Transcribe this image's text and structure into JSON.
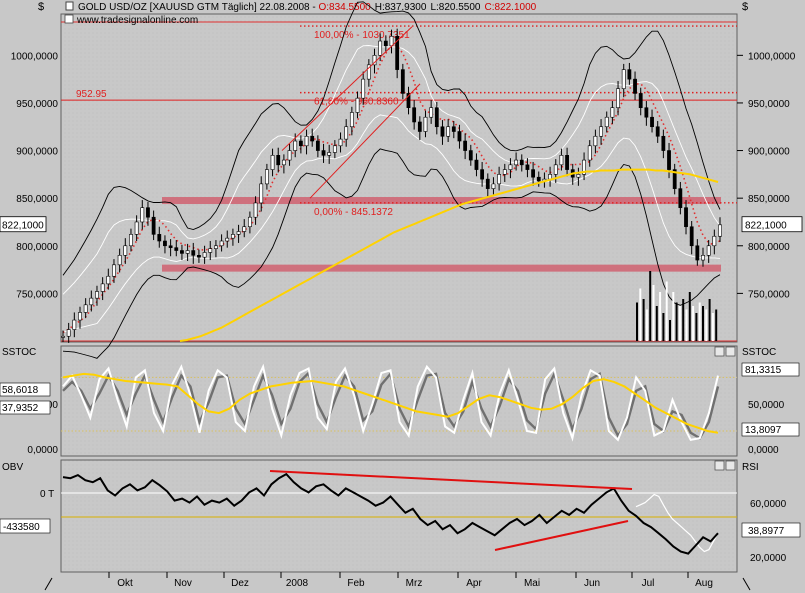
{
  "header": {
    "currency_left": "$",
    "currency_right": "$",
    "title_prefix": "GOLD USD/OZ [XAUUSD GTM  Täglich] 22.08.2008 - ",
    "open": "O:834.5500",
    "high": "H:837.9300",
    "low": "L:820.5500",
    "close": "C:822.1000",
    "source": "www.tradesignalonline.com"
  },
  "colors": {
    "background": "#c8c8c8",
    "price": "#000000",
    "ma_yellow": "#ffd200",
    "bollinger": "#000000",
    "ma_dotted": "#e03030",
    "support_band": "#d06070",
    "fib_lines": "#e02020",
    "stoch_fast": "#ffffff",
    "stoch_slow": "#707070",
    "stoch_signal": "#ffd200"
  },
  "chart_data": [
    {
      "type": "line",
      "panel": "price",
      "y_axis_ticks": [
        "1000,0000",
        "950,0000",
        "900,0000",
        "850,0000",
        "800,0000",
        "750,0000"
      ],
      "ylim": [
        700,
        1035
      ],
      "x_tick_labels": [
        "Okt",
        "Nov",
        "Dez",
        "2008",
        "Feb",
        "Mrz",
        "Apr",
        "Mai",
        "Jun",
        "Jul",
        "Aug"
      ],
      "last_value_label": "822,1000",
      "horizontal_level_label": "952.95",
      "fibonacci": [
        {
          "label": "100,00% - 1030.7351",
          "value": 1030.74
        },
        {
          "label": "61,80% - 960.8360",
          "value": 960.84
        },
        {
          "label": "0,00% - 845.1372",
          "value": 845.14
        }
      ],
      "support_bands": [
        847,
        776
      ],
      "series": [
        {
          "values": [
            705,
            712,
            722,
            730,
            738,
            745,
            752,
            760,
            768,
            780,
            790,
            800,
            812,
            825,
            840,
            830,
            812,
            805,
            800,
            798,
            795,
            792,
            795,
            790,
            788,
            793,
            797,
            800,
            805,
            808,
            812,
            815,
            820,
            830,
            845,
            865,
            880,
            895,
            885,
            890,
            900,
            910,
            905,
            915,
            910,
            900,
            895,
            898,
            905,
            912,
            925,
            940,
            955,
            975,
            990,
            1000,
            1015,
            1010,
            1020,
            985,
            960,
            945,
            930,
            920,
            935,
            945,
            925,
            915,
            925,
            920,
            910,
            900,
            890,
            880,
            870,
            860,
            865,
            875,
            880,
            885,
            890,
            885,
            880,
            872,
            868,
            870,
            875,
            885,
            895,
            880,
            872,
            875,
            890,
            905,
            915,
            925,
            935,
            945,
            965,
            985,
            975,
            960,
            945,
            935,
            925,
            915,
            900,
            880,
            860,
            840,
            820,
            800,
            785,
            790,
            800,
            810,
            822
          ]
        },
        {
          "values": [
            700,
            701,
            703,
            705,
            708,
            711,
            714,
            718,
            722,
            726,
            730,
            734,
            738,
            742,
            746,
            750,
            754,
            758,
            762,
            766,
            770,
            774,
            778,
            782,
            786,
            790,
            794,
            798,
            802,
            806,
            810,
            814,
            817,
            820,
            823,
            826,
            829,
            832,
            835,
            838,
            841,
            844,
            846,
            848,
            850,
            852,
            854,
            856,
            858,
            860,
            862,
            864,
            866,
            868,
            870,
            872,
            874,
            876,
            877,
            878,
            878,
            879,
            879,
            879,
            880,
            880,
            880,
            880,
            880,
            879,
            879,
            878,
            877,
            876,
            875,
            873,
            871,
            869,
            867
          ]
        }
      ]
    },
    {
      "type": "line",
      "panel": "SSTOC",
      "title": "SSTOC",
      "y_axis_ticks": [
        "50,0000",
        "0,0000"
      ],
      "ylim": [
        -8,
        104
      ],
      "value_labels": [
        "58,6018",
        "37,9352",
        "81,3315",
        "13,8097"
      ],
      "levels": [
        80,
        20
      ],
      "series": [
        {
          "values": [
            70,
            82,
            60,
            35,
            78,
            90,
            55,
            25,
            80,
            88,
            40,
            20,
            72,
            92,
            60,
            18,
            65,
            88,
            80,
            30,
            20,
            70,
            92,
            45,
            15,
            60,
            85,
            90,
            35,
            22,
            75,
            90,
            60,
            20,
            50,
            85,
            88,
            30,
            15,
            70,
            92,
            80,
            25,
            18,
            55,
            85,
            30,
            15,
            62,
            88,
            55,
            20,
            18,
            78,
            90,
            40,
            12,
            60,
            88,
            82,
            20,
            10,
            35,
            80,
            65,
            15,
            20,
            55,
            30,
            10,
            12,
            40,
            82
          ]
        },
        {
          "values": [
            65,
            75,
            65,
            45,
            62,
            82,
            65,
            38,
            62,
            82,
            55,
            30,
            58,
            82,
            70,
            30,
            52,
            80,
            82,
            45,
            28,
            55,
            82,
            60,
            28,
            45,
            75,
            85,
            50,
            30,
            58,
            82,
            70,
            32,
            42,
            72,
            84,
            45,
            25,
            55,
            82,
            84,
            40,
            25,
            42,
            75,
            45,
            25,
            48,
            78,
            65,
            32,
            22,
            62,
            84,
            55,
            22,
            45,
            78,
            84,
            35,
            15,
            28,
            65,
            70,
            28,
            20,
            42,
            38,
            18,
            12,
            30,
            70
          ]
        },
        {
          "values": [
            80,
            82,
            84,
            83,
            80,
            78,
            76,
            75,
            74,
            73,
            72,
            70,
            60,
            50,
            42,
            40,
            45,
            55,
            62,
            66,
            70,
            72,
            74,
            75,
            76,
            74,
            72,
            70,
            66,
            62,
            58,
            54,
            50,
            46,
            42,
            40,
            38,
            36,
            40,
            48,
            56,
            60,
            58,
            54,
            50,
            46,
            44,
            45,
            50,
            58,
            68,
            76,
            78,
            75,
            70,
            62,
            54,
            46,
            40,
            34,
            28,
            24,
            20,
            18
          ]
        }
      ]
    },
    {
      "type": "line",
      "panel": "OBV / RSI",
      "title_left": "OBV",
      "title_right": "RSI",
      "y_axis_ticks_left": [
        "0 T"
      ],
      "value_label_left": "-433580",
      "y_axis_ticks_right": [
        "60,0000",
        "20,0000"
      ],
      "value_label_right": "38,8977",
      "ylim": [
        0,
        100
      ],
      "series": [
        {
          "values": [
            93,
            92,
            95,
            90,
            88,
            92,
            80,
            75,
            82,
            86,
            80,
            83,
            90,
            85,
            79,
            70,
            72,
            68,
            74,
            66,
            70,
            68,
            72,
            65,
            70,
            78,
            82,
            75,
            86,
            92,
            96,
            88,
            82,
            78,
            84,
            86,
            80,
            75,
            82,
            78,
            74,
            70,
            65,
            68,
            74,
            66,
            58,
            62,
            52,
            46,
            50,
            42,
            46,
            38,
            42,
            48,
            44,
            40,
            36,
            42,
            48,
            52,
            46,
            50,
            56,
            48,
            54,
            60,
            56,
            62,
            58,
            66,
            72,
            78,
            82,
            70,
            60,
            55,
            48,
            44,
            38,
            32,
            25,
            20,
            18,
            26,
            34,
            30,
            38
          ]
        },
        {
          "values": [
            64,
            66,
            68,
            72,
            76,
            74,
            66,
            58,
            52,
            48,
            44,
            40,
            36,
            30,
            24,
            20,
            22,
            30,
            38
          ]
        }
      ]
    }
  ]
}
